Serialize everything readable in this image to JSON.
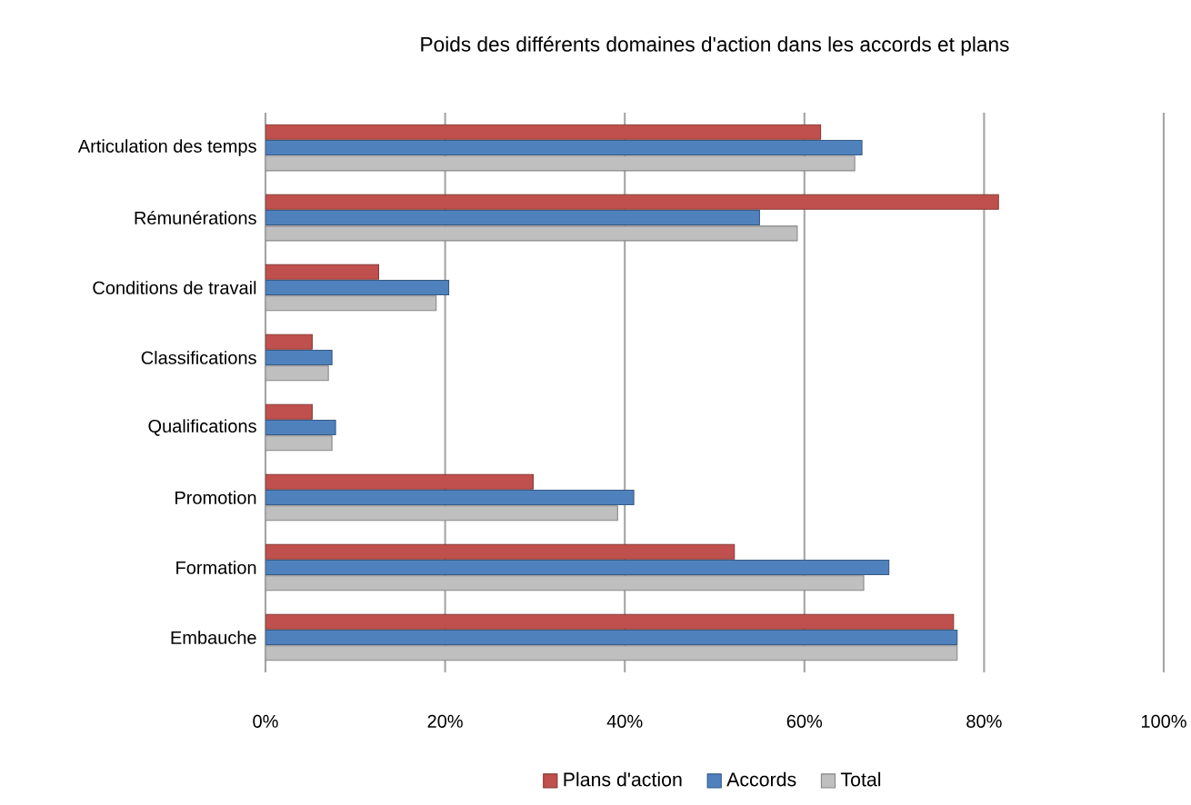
{
  "chart_data": {
    "type": "bar",
    "orientation": "horizontal",
    "title": "Poids des différents domaines d'action dans les accords et plans",
    "categories": [
      "Articulation des temps",
      "Rémunérations",
      "Conditions de travail",
      "Classifications",
      "Qualifications",
      "Promotion",
      "Formation",
      "Embauche"
    ],
    "series": [
      {
        "name": "Plans d'action",
        "color": "#c0504d",
        "values": [
          61.8,
          81.6,
          12.6,
          5.2,
          5.2,
          29.8,
          52.2,
          76.6
        ]
      },
      {
        "name": "Accords",
        "color": "#4f81bd",
        "values": [
          66.4,
          55,
          20.4,
          7.4,
          7.8,
          41,
          69.4,
          77
        ]
      },
      {
        "name": "Total",
        "color": "#bfbfbf",
        "values": [
          65.6,
          59.2,
          19,
          7,
          7.4,
          39.2,
          66.6,
          77
        ]
      }
    ],
    "xlim": [
      0,
      100
    ],
    "xticks": [
      {
        "value": 0,
        "label": "0%"
      },
      {
        "value": 20,
        "label": "20%"
      },
      {
        "value": 40,
        "label": "40%"
      },
      {
        "value": 60,
        "label": "60%"
      },
      {
        "value": 80,
        "label": "80%"
      },
      {
        "value": 100,
        "label": "100%"
      }
    ],
    "grid": "x",
    "legend": "bottom"
  }
}
